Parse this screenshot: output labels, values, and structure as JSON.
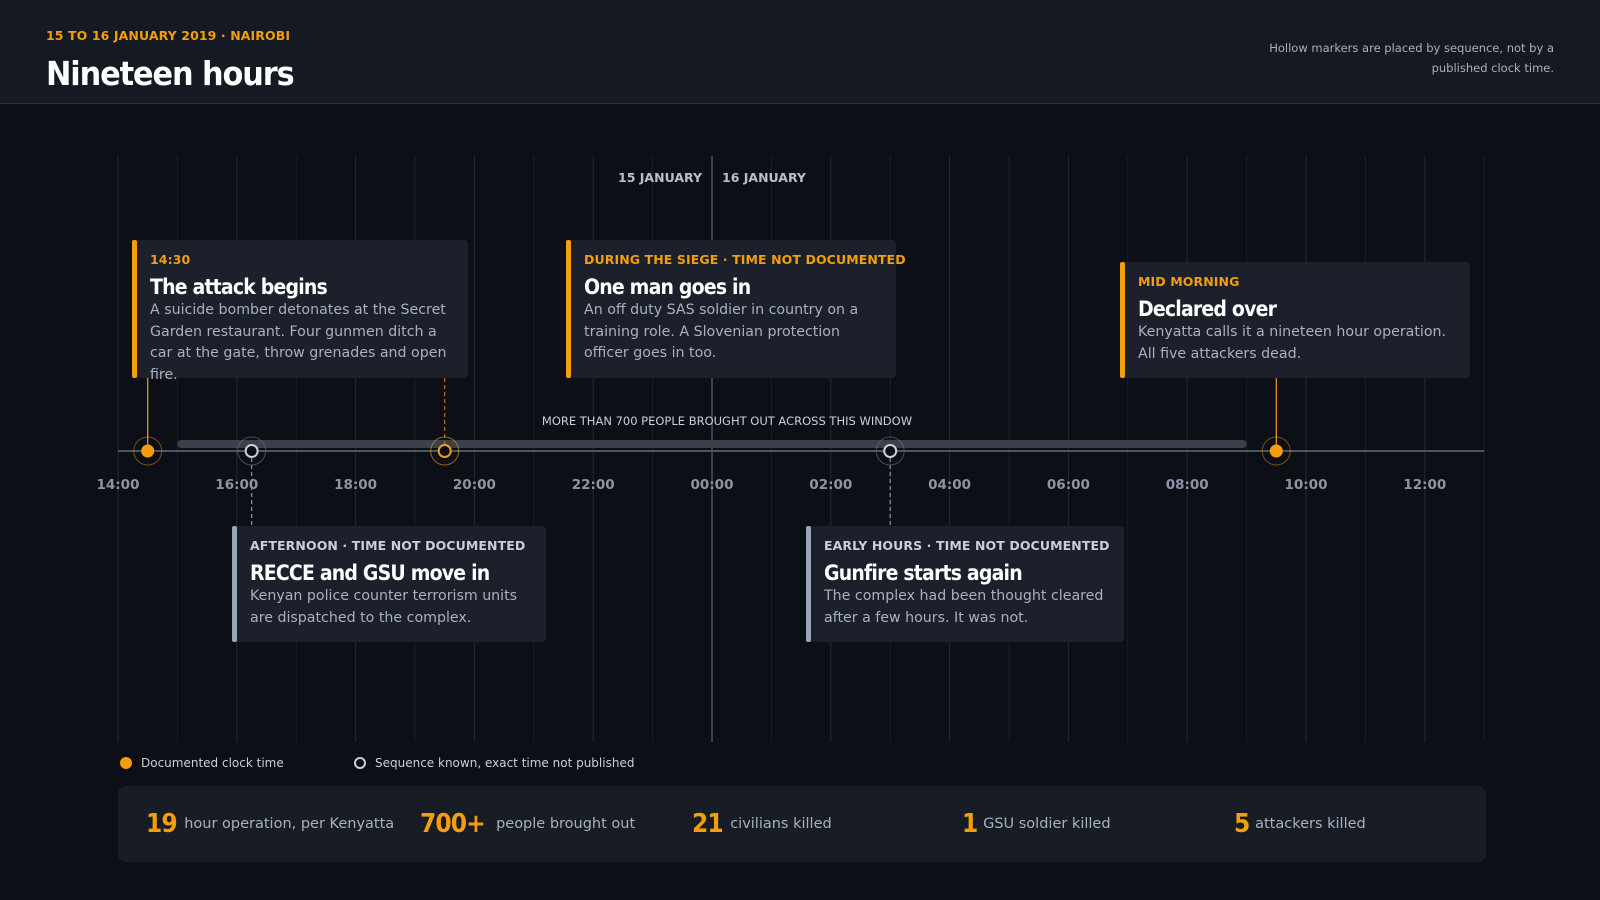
{
  "header": {
    "kicker": "15 TO 16 JANUARY 2019 · NAIROBI",
    "title": "Nineteen hours",
    "note": "Hollow markers are placed by sequence, not by a published clock time."
  },
  "chart_data": {
    "type": "timeline",
    "x_axis": {
      "ticks": [
        "14:00",
        "16:00",
        "18:00",
        "20:00",
        "22:00",
        "00:00",
        "02:00",
        "04:00",
        "06:00",
        "08:00",
        "10:00",
        "12:00"
      ],
      "range_hours_from_1400": [
        0,
        23
      ]
    },
    "day_labels": {
      "left": "15 JANUARY",
      "right": "16 JANUARY",
      "divider_tick": "00:00"
    },
    "span": {
      "label": "MORE THAN 700 PEOPLE BROUGHT OUT ACROSS THIS WINDOW",
      "start_hour": 1.0,
      "end_hour": 19.0
    },
    "events": [
      {
        "hour": 0.5,
        "marker": "documented",
        "card": "above",
        "connector": "solid",
        "tag": "14:30",
        "title": "The attack begins",
        "text": "A suicide bomber detonates at the Secret Garden restaurant. Four gunmen ditch a car at the gate, throw grenades and open fire."
      },
      {
        "hour": 2.25,
        "marker": "sequence",
        "card": "below",
        "connector": "dashed",
        "tag": "AFTERNOON · TIME NOT DOCUMENTED",
        "title": "RECCE and GSU move in",
        "text": "Kenyan police counter terrorism units are dispatched to the complex."
      },
      {
        "hour": 5.5,
        "marker": "sequence",
        "card": "above",
        "connector": "dashed",
        "tag": "DURING THE SIEGE · TIME NOT DOCUMENTED",
        "title": "One man goes in",
        "text": "An off duty SAS soldier in country on a training role. A Slovenian protection officer goes in too."
      },
      {
        "hour": 13.0,
        "marker": "sequence",
        "card": "below",
        "connector": "dashed",
        "tag": "EARLY HOURS · TIME NOT DOCUMENTED",
        "title": "Gunfire starts again",
        "text": "The complex had been thought cleared after a few hours. It was not."
      },
      {
        "hour": 19.5,
        "marker": "documented",
        "card": "above",
        "connector": "solid",
        "tag": "MID MORNING",
        "title": "Declared over",
        "text": "Kenyatta calls it a nineteen hour operation. All five attackers dead."
      }
    ],
    "colors": {
      "documented": "#f59e0b",
      "sequence": "#c9d0da",
      "axis": "#4b5463",
      "span": "#3a414d"
    }
  },
  "legend": {
    "documented": "Documented clock time",
    "sequence": "Sequence known, exact time not published"
  },
  "stats": [
    {
      "value": "19",
      "label": "hour operation, per Kenyatta"
    },
    {
      "value": "700+",
      "label": "people brought out"
    },
    {
      "value": "21",
      "label": "civilians killed"
    },
    {
      "value": "1",
      "label": "GSU soldier killed"
    },
    {
      "value": "5",
      "label": "attackers killed"
    }
  ]
}
